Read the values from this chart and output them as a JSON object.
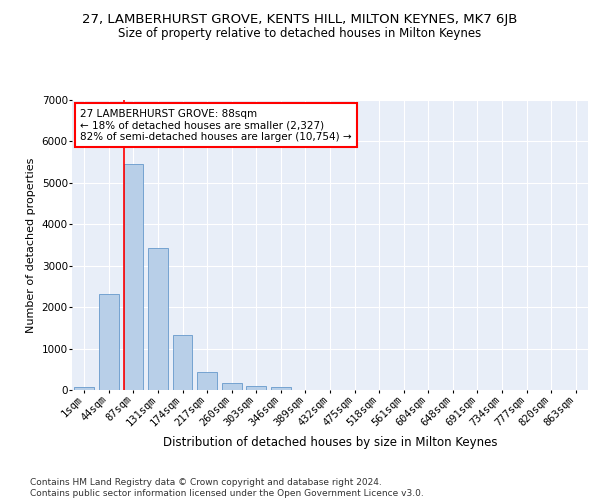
{
  "title": "27, LAMBERHURST GROVE, KENTS HILL, MILTON KEYNES, MK7 6JB",
  "subtitle": "Size of property relative to detached houses in Milton Keynes",
  "xlabel": "Distribution of detached houses by size in Milton Keynes",
  "ylabel": "Number of detached properties",
  "footer_line1": "Contains HM Land Registry data © Crown copyright and database right 2024.",
  "footer_line2": "Contains public sector information licensed under the Open Government Licence v3.0.",
  "categories": [
    "1sqm",
    "44sqm",
    "87sqm",
    "131sqm",
    "174sqm",
    "217sqm",
    "260sqm",
    "303sqm",
    "346sqm",
    "389sqm",
    "432sqm",
    "475sqm",
    "518sqm",
    "561sqm",
    "604sqm",
    "648sqm",
    "691sqm",
    "734sqm",
    "777sqm",
    "820sqm",
    "863sqm"
  ],
  "values": [
    75,
    2320,
    5460,
    3430,
    1320,
    440,
    165,
    95,
    65,
    0,
    0,
    0,
    0,
    0,
    0,
    0,
    0,
    0,
    0,
    0,
    0
  ],
  "bar_color": "#b8cfe8",
  "bar_edge_color": "#6699cc",
  "vline_color": "red",
  "vline_x": 1.6,
  "annotation_text": "27 LAMBERHURST GROVE: 88sqm\n← 18% of detached houses are smaller (2,327)\n82% of semi-detached houses are larger (10,754) →",
  "annotation_box_color": "white",
  "annotation_box_edge_color": "red",
  "ylim": [
    0,
    7000
  ],
  "yticks": [
    0,
    1000,
    2000,
    3000,
    4000,
    5000,
    6000,
    7000
  ],
  "plot_background_color": "#e8eef8",
  "title_fontsize": 9.5,
  "subtitle_fontsize": 8.5,
  "ylabel_fontsize": 8,
  "xlabel_fontsize": 8.5,
  "footer_fontsize": 6.5,
  "tick_fontsize": 7.5,
  "annotation_fontsize": 7.5
}
